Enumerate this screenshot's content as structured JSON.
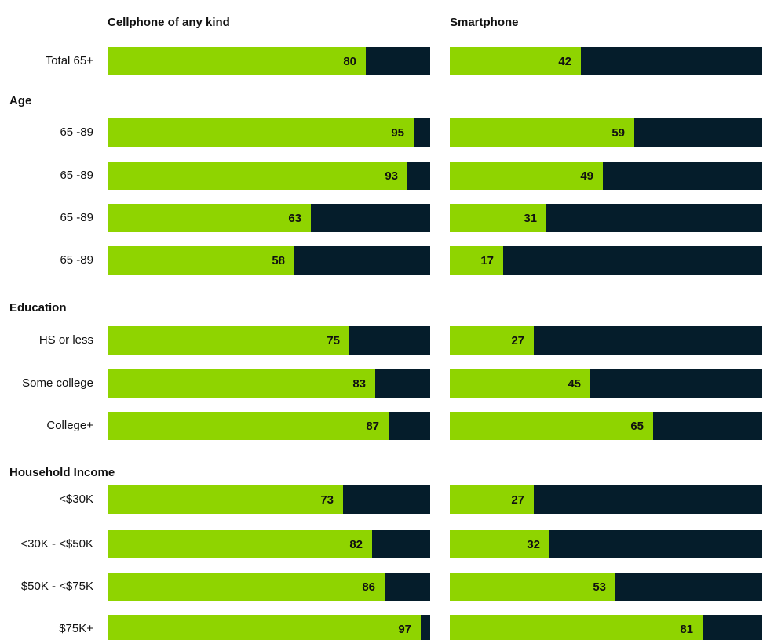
{
  "colors": {
    "value": "#8fd400",
    "remainder": "#051d2b",
    "label": "#111111"
  },
  "chart_data": {
    "type": "bar",
    "orientation": "horizontal",
    "stacked": true,
    "legend": "none",
    "grid": false,
    "xlim": [
      0,
      100
    ],
    "panels": [
      {
        "title": "Cellphone of any kind",
        "values": [
          80,
          95,
          93,
          63,
          58,
          75,
          83,
          87,
          73,
          82,
          86,
          97
        ]
      },
      {
        "title": "Smartphone",
        "values": [
          42,
          59,
          49,
          31,
          17,
          27,
          45,
          65,
          27,
          32,
          53,
          81
        ]
      }
    ],
    "rows": [
      {
        "label": "Total 65+"
      },
      {
        "group": "Age"
      },
      {
        "label": "65 -89"
      },
      {
        "label": "65 -89"
      },
      {
        "label": "65 -89"
      },
      {
        "label": "65 -89"
      },
      {
        "group": "Education"
      },
      {
        "label": "HS or less"
      },
      {
        "label": "Some college"
      },
      {
        "label": "College+"
      },
      {
        "group": "Household Income"
      },
      {
        "label": "<$30K"
      },
      {
        "label": "<30K - <$50K"
      },
      {
        "label": "$50K - <$75K"
      },
      {
        "label": "$75K+"
      }
    ]
  }
}
